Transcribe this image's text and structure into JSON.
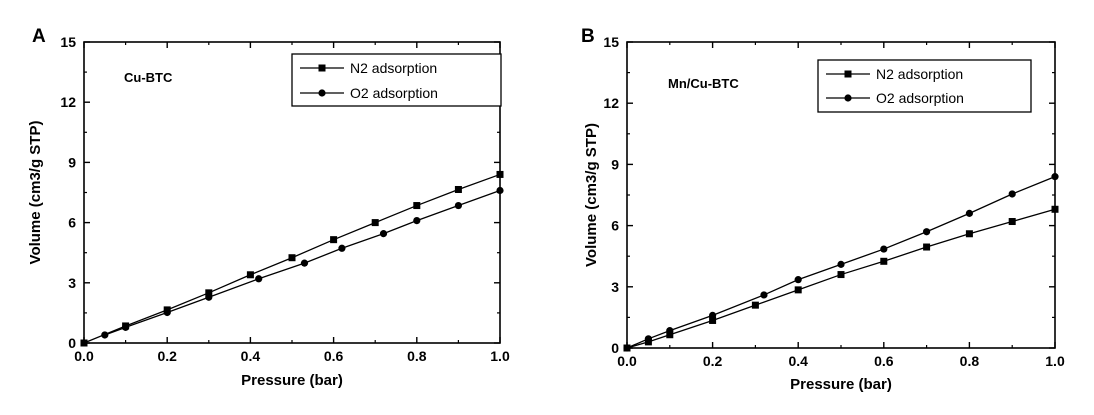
{
  "chart_data": [
    {
      "type": "line",
      "panel_label": "A",
      "sample_label": "Cu-BTC",
      "xlabel": "Pressure (bar)",
      "ylabel": "Volume (cm3/g STP)",
      "xlim": [
        0.0,
        1.0
      ],
      "ylim": [
        0,
        15
      ],
      "x_ticks": [
        "0.0",
        "0.2",
        "0.4",
        "0.6",
        "0.8",
        "1.0"
      ],
      "y_ticks": [
        "0",
        "3",
        "6",
        "9",
        "12",
        "15"
      ],
      "grid": false,
      "legend_position": "top-right",
      "series": [
        {
          "name": "N2 adsorption",
          "marker": "square",
          "points": [
            [
              0.0,
              0.0
            ],
            [
              0.1,
              0.85
            ],
            [
              0.2,
              1.65
            ],
            [
              0.3,
              2.5
            ],
            [
              0.4,
              3.4
            ],
            [
              0.5,
              4.25
            ],
            [
              0.6,
              5.15
            ],
            [
              0.7,
              6.0
            ],
            [
              0.8,
              6.85
            ],
            [
              0.9,
              7.65
            ],
            [
              1.0,
              8.4
            ]
          ]
        },
        {
          "name": "O2 adsorption",
          "marker": "circle",
          "points": [
            [
              0.05,
              0.4
            ],
            [
              0.1,
              0.78
            ],
            [
              0.2,
              1.52
            ],
            [
              0.3,
              2.28
            ],
            [
              0.42,
              3.2
            ],
            [
              0.53,
              3.98
            ],
            [
              0.62,
              4.72
            ],
            [
              0.72,
              5.45
            ],
            [
              0.8,
              6.1
            ],
            [
              0.9,
              6.85
            ],
            [
              1.0,
              7.6
            ]
          ]
        }
      ]
    },
    {
      "type": "line",
      "panel_label": "B",
      "sample_label": "Mn/Cu-BTC",
      "xlabel": "Pressure (bar)",
      "ylabel": "Volume (cm3/g STP)",
      "xlim": [
        0.0,
        1.0
      ],
      "ylim": [
        0,
        15
      ],
      "x_ticks": [
        "0.0",
        "0.2",
        "0.4",
        "0.6",
        "0.8",
        "1.0"
      ],
      "y_ticks": [
        "0",
        "3",
        "6",
        "9",
        "12",
        "15"
      ],
      "grid": false,
      "legend_position": "top-right",
      "series": [
        {
          "name": "N2 adsorption",
          "marker": "square",
          "points": [
            [
              0.0,
              0.0
            ],
            [
              0.05,
              0.3
            ],
            [
              0.1,
              0.65
            ],
            [
              0.2,
              1.35
            ],
            [
              0.3,
              2.1
            ],
            [
              0.4,
              2.85
            ],
            [
              0.5,
              3.6
            ],
            [
              0.6,
              4.25
            ],
            [
              0.7,
              4.95
            ],
            [
              0.8,
              5.6
            ],
            [
              0.9,
              6.2
            ],
            [
              1.0,
              6.8
            ]
          ]
        },
        {
          "name": "O2 adsorption",
          "marker": "circle",
          "points": [
            [
              0.0,
              0.0
            ],
            [
              0.05,
              0.45
            ],
            [
              0.1,
              0.85
            ],
            [
              0.2,
              1.6
            ],
            [
              0.32,
              2.6
            ],
            [
              0.4,
              3.35
            ],
            [
              0.5,
              4.1
            ],
            [
              0.6,
              4.85
            ],
            [
              0.7,
              5.7
            ],
            [
              0.8,
              6.6
            ],
            [
              0.9,
              7.55
            ],
            [
              1.0,
              8.4
            ]
          ]
        }
      ]
    }
  ]
}
